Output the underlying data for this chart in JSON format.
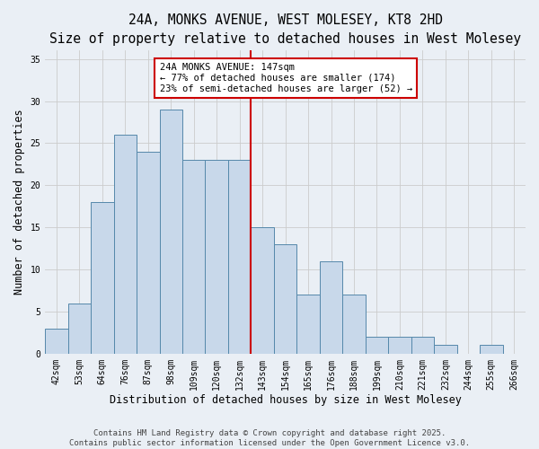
{
  "title": "24A, MONKS AVENUE, WEST MOLESEY, KT8 2HD",
  "subtitle": "Size of property relative to detached houses in West Molesey",
  "xlabel": "Distribution of detached houses by size in West Molesey",
  "ylabel": "Number of detached properties",
  "categories": [
    "42sqm",
    "53sqm",
    "64sqm",
    "76sqm",
    "87sqm",
    "98sqm",
    "109sqm",
    "120sqm",
    "132sqm",
    "143sqm",
    "154sqm",
    "165sqm",
    "176sqm",
    "188sqm",
    "199sqm",
    "210sqm",
    "221sqm",
    "232sqm",
    "244sqm",
    "255sqm",
    "266sqm"
  ],
  "values": [
    3,
    6,
    18,
    26,
    24,
    29,
    23,
    23,
    23,
    15,
    13,
    7,
    11,
    7,
    2,
    2,
    2,
    1,
    0,
    1,
    0
  ],
  "bar_color": "#c8d8ea",
  "bar_edge_color": "#5588aa",
  "reference_line_color": "#cc0000",
  "annotation_text": "24A MONKS AVENUE: 147sqm\n← 77% of detached houses are smaller (174)\n23% of semi-detached houses are larger (52) →",
  "annotation_box_color": "#cc0000",
  "annotation_bg_color": "#ffffff",
  "ylim": [
    0,
    36
  ],
  "yticks": [
    0,
    5,
    10,
    15,
    20,
    25,
    30,
    35
  ],
  "grid_color": "#cccccc",
  "bg_color": "#eaeff5",
  "footer_line1": "Contains HM Land Registry data © Crown copyright and database right 2025.",
  "footer_line2": "Contains public sector information licensed under the Open Government Licence v3.0.",
  "title_fontsize": 10.5,
  "subtitle_fontsize": 9.5,
  "label_fontsize": 8.5,
  "tick_fontsize": 7,
  "footer_fontsize": 6.5,
  "annotation_fontsize": 7.5
}
